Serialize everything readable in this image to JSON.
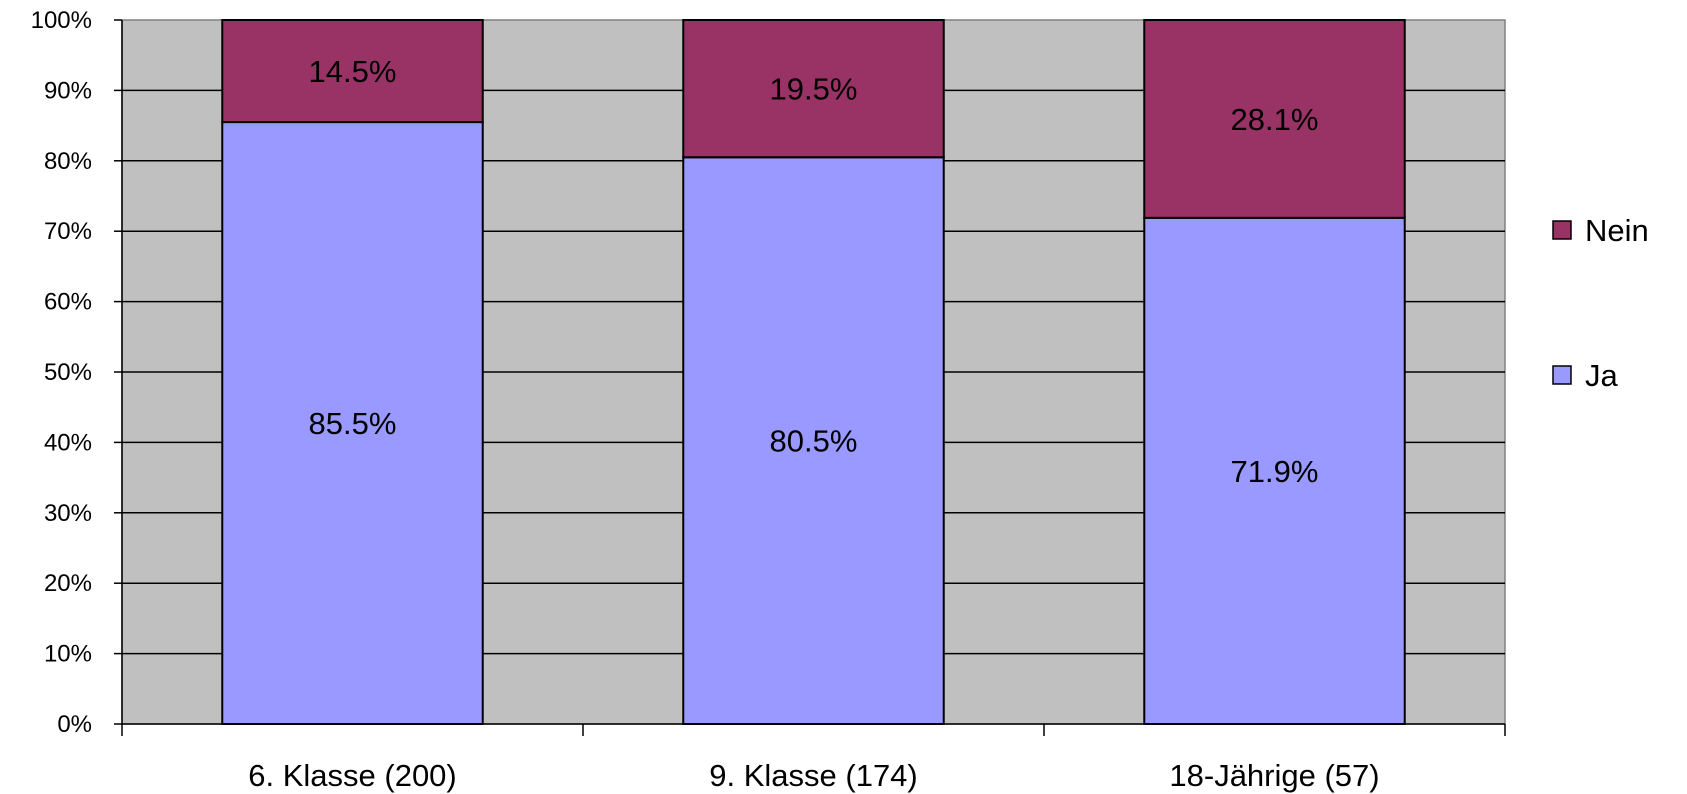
{
  "chart_data": {
    "type": "bar",
    "stacked": true,
    "percent_stacked": true,
    "categories": [
      "6. Klasse (200)",
      "9. Klasse (174)",
      "18-Jährige (57)"
    ],
    "series": [
      {
        "name": "Ja",
        "values": [
          85.5,
          80.5,
          71.9
        ],
        "labels": [
          "85.5%",
          "80.5%",
          "71.9%"
        ],
        "color": "#9999ff"
      },
      {
        "name": "Nein",
        "values": [
          14.5,
          19.5,
          28.1
        ],
        "labels": [
          "14.5%",
          "19.5%",
          "28.1%"
        ],
        "color": "#993366"
      }
    ],
    "ylim": [
      0,
      100
    ],
    "yticks": [
      "0%",
      "10%",
      "20%",
      "30%",
      "40%",
      "50%",
      "60%",
      "70%",
      "80%",
      "90%",
      "100%"
    ],
    "legend_order": [
      "Nein",
      "Ja"
    ],
    "legend_position": "right",
    "grid": true,
    "plot_background": "#c0c0c0"
  }
}
